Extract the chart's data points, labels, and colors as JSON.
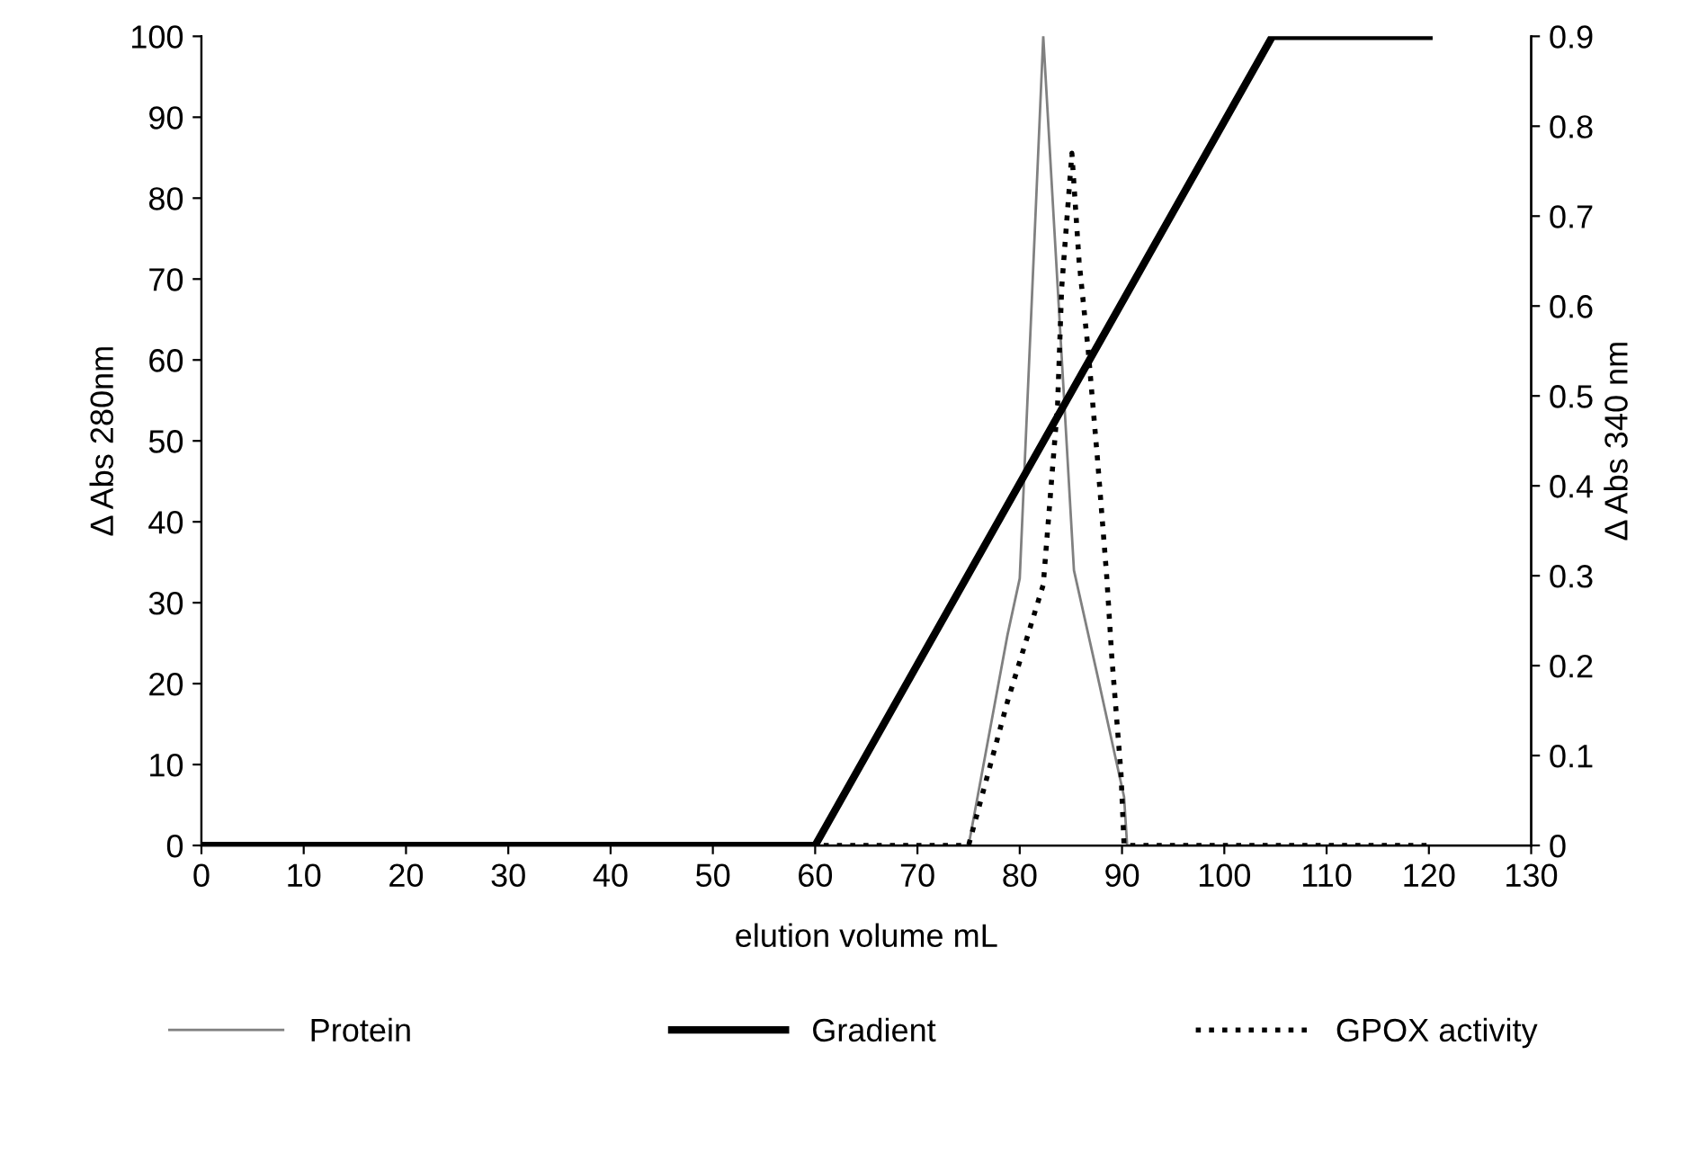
{
  "chart_data": {
    "type": "line",
    "xlabel": "elution volume mL",
    "ylabel": "Δ Abs 280nm",
    "y2label": "Δ Abs 340 nm",
    "xlim": [
      0,
      130
    ],
    "xticks": [
      0,
      10,
      20,
      30,
      40,
      50,
      60,
      70,
      80,
      90,
      100,
      110,
      120,
      130
    ],
    "ylim": [
      0,
      100
    ],
    "yticks": [
      0,
      10,
      20,
      30,
      40,
      50,
      60,
      70,
      80,
      90,
      100
    ],
    "y2lim": [
      0,
      0.9
    ],
    "y2ticks": [
      0,
      0.1,
      0.2,
      0.3,
      0.4,
      0.5,
      0.6,
      0.7,
      0.8,
      0.9
    ],
    "grid": false,
    "legend": "bottom",
    "marker": "none",
    "series": [
      {
        "name": "Protein",
        "color": "#808080",
        "line_style": "solid",
        "x": [
          0,
          75,
          78.8,
          80,
          82.3,
          85.3,
          87.6,
          90.2,
          90.5,
          130
        ],
        "values": [
          0,
          0,
          26,
          33,
          100,
          34,
          21,
          6,
          0,
          0
        ]
      },
      {
        "name": "Gradient",
        "color": "#000000",
        "line_style": "solid",
        "x": [
          0,
          60,
          104.7,
          120
        ],
        "values": [
          0,
          0,
          100,
          100
        ]
      },
      {
        "name": "GPOX activity",
        "color": "#000000",
        "line_style": "dotted",
        "axis": "y2",
        "x": [
          0,
          75,
          78.8,
          82.3,
          83.7,
          84.1,
          85.1,
          85.8,
          86.7,
          87.6,
          88.5,
          89,
          89.9,
          90.2,
          120
        ],
        "values": [
          0,
          0,
          0.16,
          0.29,
          0.49,
          0.62,
          0.77,
          0.65,
          0.55,
          0.43,
          0.3,
          0.21,
          0.08,
          0,
          0
        ]
      }
    ]
  }
}
